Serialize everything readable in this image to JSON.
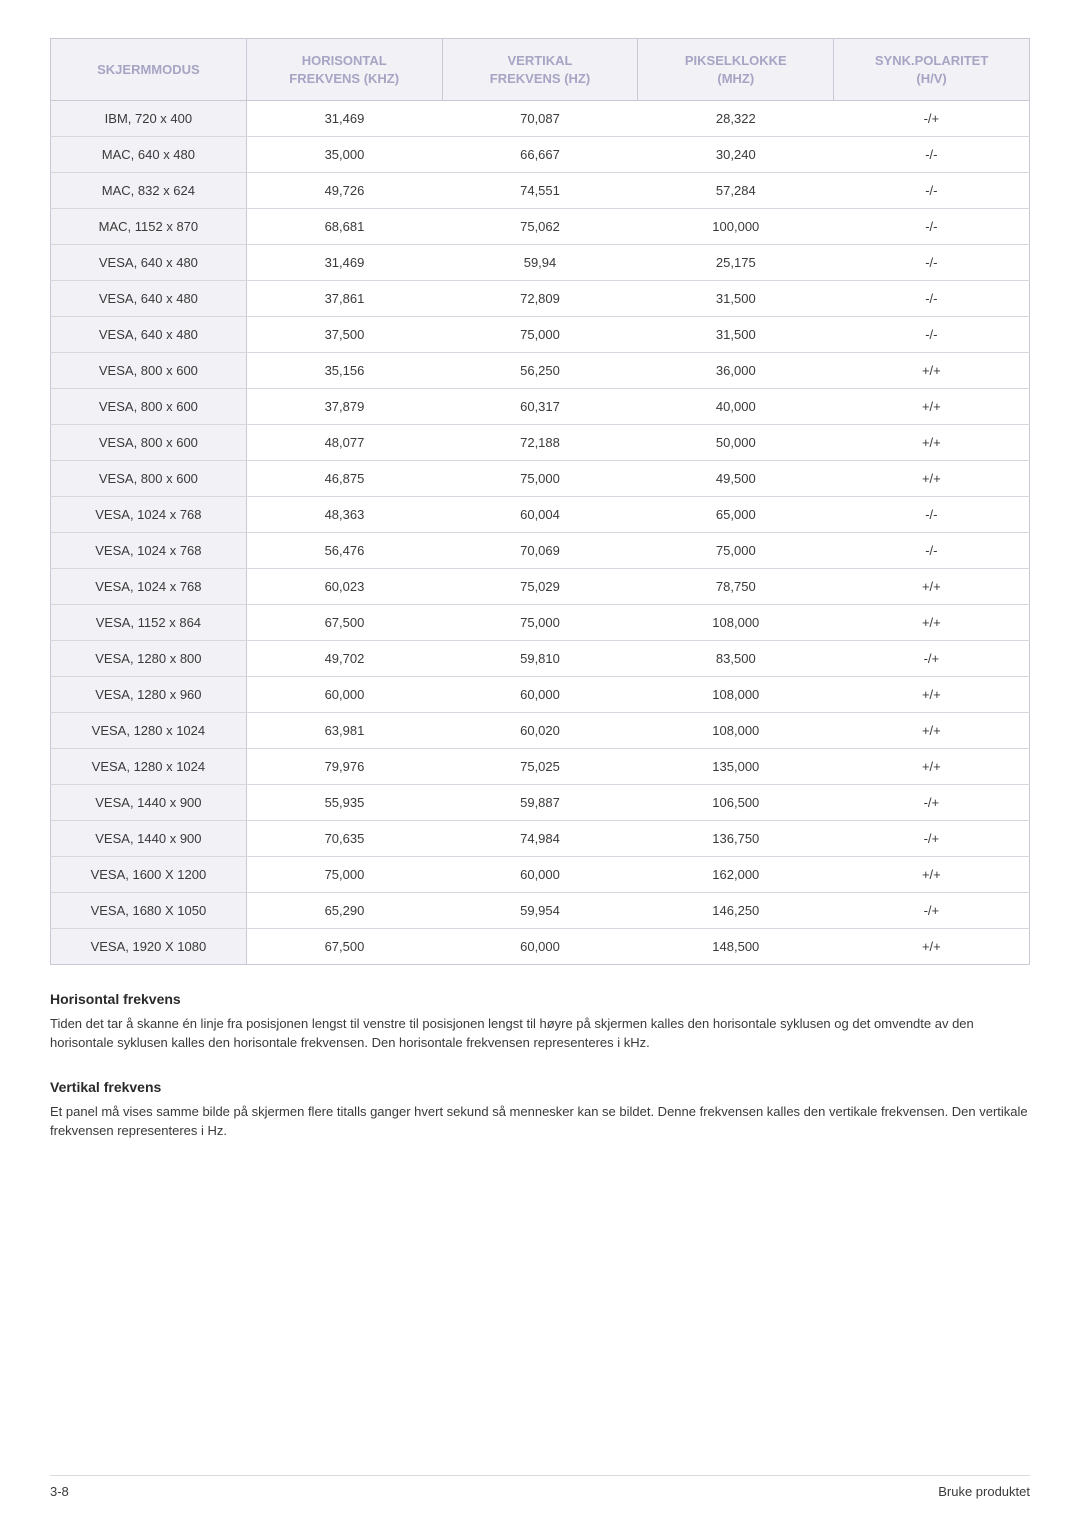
{
  "table": {
    "headers": {
      "c0": "SKJERMMODUS",
      "c1_l1": "HORISONTAL",
      "c1_l2": "FREKVENS (KHZ)",
      "c2_l1": "VERTIKAL",
      "c2_l2": "FREKVENS (HZ)",
      "c3_l1": "PIKSELKLOKKE",
      "c3_l2": "(MHZ)",
      "c4_l1": "SYNK.POLARITET",
      "c4_l2": "(H/V)"
    },
    "col_widths_pct": [
      20,
      20,
      20,
      20,
      20
    ],
    "header_bg": "#f1f1f6",
    "header_fg": "#a7a4c4",
    "border_color": "#c9c9d6",
    "row_border_color": "#d7d7df",
    "cell_fg": "#3a3a3a",
    "rows": [
      [
        "IBM, 720 x 400",
        "31,469",
        "70,087",
        "28,322",
        "-/+"
      ],
      [
        "MAC, 640 x 480",
        "35,000",
        "66,667",
        "30,240",
        "-/-"
      ],
      [
        "MAC, 832 x 624",
        "49,726",
        "74,551",
        "57,284",
        "-/-"
      ],
      [
        "MAC, 1152 x 870",
        "68,681",
        "75,062",
        "100,000",
        "-/-"
      ],
      [
        "VESA, 640 x 480",
        "31,469",
        "59,94",
        "25,175",
        "-/-"
      ],
      [
        "VESA, 640 x 480",
        "37,861",
        "72,809",
        "31,500",
        "-/-"
      ],
      [
        "VESA, 640 x 480",
        "37,500",
        "75,000",
        "31,500",
        "-/-"
      ],
      [
        "VESA, 800 x 600",
        "35,156",
        "56,250",
        "36,000",
        "+/+"
      ],
      [
        "VESA, 800 x 600",
        "37,879",
        "60,317",
        "40,000",
        "+/+"
      ],
      [
        "VESA, 800 x 600",
        "48,077",
        "72,188",
        "50,000",
        "+/+"
      ],
      [
        "VESA, 800 x 600",
        "46,875",
        "75,000",
        "49,500",
        "+/+"
      ],
      [
        "VESA, 1024 x 768",
        "48,363",
        "60,004",
        "65,000",
        "-/-"
      ],
      [
        "VESA, 1024 x 768",
        "56,476",
        "70,069",
        "75,000",
        "-/-"
      ],
      [
        "VESA, 1024 x 768",
        "60,023",
        "75,029",
        "78,750",
        "+/+"
      ],
      [
        "VESA, 1152 x 864",
        "67,500",
        "75,000",
        "108,000",
        "+/+"
      ],
      [
        "VESA, 1280 x 800",
        "49,702",
        "59,810",
        "83,500",
        "-/+"
      ],
      [
        "VESA, 1280 x 960",
        "60,000",
        "60,000",
        "108,000",
        "+/+"
      ],
      [
        "VESA, 1280 x 1024",
        "63,981",
        "60,020",
        "108,000",
        "+/+"
      ],
      [
        "VESA, 1280 x 1024",
        "79,976",
        "75,025",
        "135,000",
        "+/+"
      ],
      [
        "VESA, 1440 x 900",
        "55,935",
        "59,887",
        "106,500",
        "-/+"
      ],
      [
        "VESA, 1440 x 900",
        "70,635",
        "74,984",
        "136,750",
        "-/+"
      ],
      [
        "VESA, 1600 X 1200",
        "75,000",
        "60,000",
        "162,000",
        "+/+"
      ],
      [
        "VESA, 1680 X 1050",
        "65,290",
        "59,954",
        "146,250",
        "-/+"
      ],
      [
        "VESA, 1920 X 1080",
        "67,500",
        "60,000",
        "148,500",
        "+/+"
      ]
    ]
  },
  "sections": {
    "h1": "Horisontal frekvens",
    "p1": "Tiden det tar å skanne én linje fra posisjonen lengst til venstre til posisjonen lengst til høyre på skjermen kalles den horisontale syklusen og det omvendte av den horisontale syklusen kalles den horisontale frekvensen. Den horisontale frekvensen representeres i kHz.",
    "h2": "Vertikal frekvens",
    "p2": "Et panel må vises samme bilde på skjermen flere titalls ganger hvert sekund så mennesker kan se bildet. Denne frekvensen kalles den vertikale frekvensen. Den vertikale frekvensen representeres i Hz."
  },
  "footer": {
    "left": "3-8",
    "right": "Bruke produktet"
  }
}
